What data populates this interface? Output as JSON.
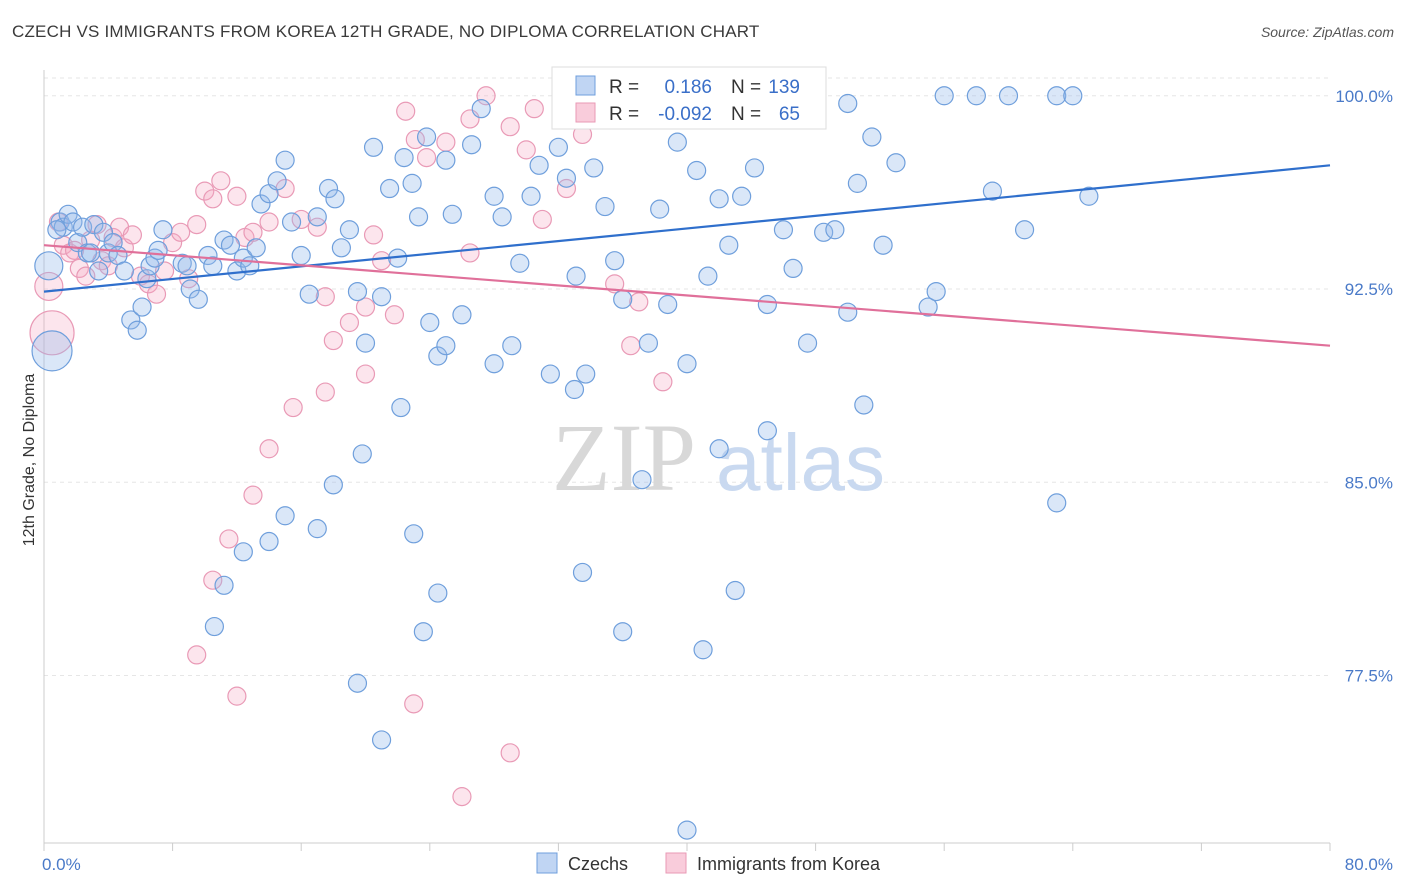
{
  "title": "CZECH VS IMMIGRANTS FROM KOREA 12TH GRADE, NO DIPLOMA CORRELATION CHART",
  "source": "Source: ZipAtlas.com",
  "watermark": {
    "zip": "ZIP",
    "atlas": "atlas"
  },
  "colors": {
    "czech_fill": "rgba(150,185,235,0.35)",
    "czech_stroke": "#6f9fdc",
    "czech_line": "#2f6fcc",
    "korea_fill": "rgba(245,170,195,0.30)",
    "korea_stroke": "#e99ab6",
    "korea_line": "#e0709a",
    "label_blue": "#4a7ac8"
  },
  "chart_data": {
    "type": "scatter",
    "title": "CZECH VS IMMIGRANTS FROM KOREA 12TH GRADE, NO DIPLOMA CORRELATION CHART",
    "xlabel": "",
    "ylabel": "12th Grade, No Diploma",
    "xlim": [
      0,
      80
    ],
    "ylim": [
      71.0,
      101.0
    ],
    "x_tick_labels": [
      "0.0%",
      "80.0%"
    ],
    "y_ticks": [
      77.5,
      85.0,
      92.5,
      100.0
    ],
    "y_tick_labels": [
      "77.5%",
      "85.0%",
      "92.5%",
      "100.0%"
    ],
    "grid": true,
    "legend_placement": "top-center",
    "stats": [
      {
        "r_label": "R =",
        "r": "0.186",
        "n_label": "N =",
        "n": "139"
      },
      {
        "r_label": "R =",
        "r": "-0.092",
        "n_label": "N =",
        "n": "65"
      }
    ],
    "series": [
      {
        "name": "Czechs",
        "trend": {
          "x": [
            0,
            80
          ],
          "y": [
            92.4,
            97.3
          ]
        },
        "points": [
          [
            0.3,
            93.4
          ],
          [
            0.5,
            90.1
          ],
          [
            1.0,
            95.1
          ],
          [
            1.2,
            94.9
          ],
          [
            1.5,
            95.4
          ],
          [
            1.8,
            95.1
          ],
          [
            2.1,
            94.3
          ],
          [
            2.4,
            94.9
          ],
          [
            2.7,
            93.9
          ],
          [
            3.1,
            95.0
          ],
          [
            3.4,
            93.2
          ],
          [
            3.7,
            94.7
          ],
          [
            4.0,
            93.9
          ],
          [
            4.3,
            94.3
          ],
          [
            0.8,
            94.8
          ],
          [
            2.9,
            93.9
          ],
          [
            4.6,
            93.8
          ],
          [
            5.0,
            93.2
          ],
          [
            5.4,
            91.3
          ],
          [
            5.8,
            90.9
          ],
          [
            6.1,
            91.8
          ],
          [
            6.4,
            92.9
          ],
          [
            6.6,
            93.4
          ],
          [
            6.9,
            93.7
          ],
          [
            7.1,
            94.0
          ],
          [
            7.4,
            94.8
          ],
          [
            8.6,
            93.5
          ],
          [
            8.9,
            93.4
          ],
          [
            9.1,
            92.5
          ],
          [
            9.6,
            92.1
          ],
          [
            10.2,
            93.8
          ],
          [
            10.5,
            93.4
          ],
          [
            11.2,
            94.4
          ],
          [
            11.6,
            94.2
          ],
          [
            12.0,
            93.2
          ],
          [
            12.4,
            93.7
          ],
          [
            12.8,
            93.4
          ],
          [
            13.2,
            94.1
          ],
          [
            13.5,
            95.8
          ],
          [
            14.0,
            96.2
          ],
          [
            14.5,
            96.7
          ],
          [
            15.0,
            97.5
          ],
          [
            15.4,
            95.1
          ],
          [
            16.0,
            93.8
          ],
          [
            16.5,
            92.3
          ],
          [
            17.0,
            95.3
          ],
          [
            17.7,
            96.4
          ],
          [
            18.1,
            96.0
          ],
          [
            18.5,
            94.1
          ],
          [
            19.0,
            94.8
          ],
          [
            19.5,
            92.4
          ],
          [
            20.0,
            90.4
          ],
          [
            20.5,
            98.0
          ],
          [
            21.0,
            92.2
          ],
          [
            21.5,
            96.4
          ],
          [
            22.0,
            93.7
          ],
          [
            22.4,
            97.6
          ],
          [
            22.9,
            96.6
          ],
          [
            23.3,
            95.3
          ],
          [
            23.8,
            98.4
          ],
          [
            24.5,
            89.9
          ],
          [
            25.0,
            97.5
          ],
          [
            25.4,
            95.4
          ],
          [
            26.0,
            91.5
          ],
          [
            26.6,
            98.1
          ],
          [
            27.2,
            99.5
          ],
          [
            28.0,
            96.1
          ],
          [
            28.5,
            95.3
          ],
          [
            29.1,
            90.3
          ],
          [
            29.6,
            93.5
          ],
          [
            30.3,
            96.1
          ],
          [
            30.8,
            97.3
          ],
          [
            31.5,
            89.2
          ],
          [
            32.0,
            98.0
          ],
          [
            32.5,
            96.8
          ],
          [
            33.1,
            93.0
          ],
          [
            33.7,
            89.2
          ],
          [
            34.2,
            97.2
          ],
          [
            34.9,
            95.7
          ],
          [
            35.5,
            93.6
          ],
          [
            36.0,
            92.1
          ],
          [
            36.9,
            99.1
          ],
          [
            37.6,
            90.4
          ],
          [
            38.3,
            95.6
          ],
          [
            38.8,
            91.9
          ],
          [
            39.4,
            98.2
          ],
          [
            40.0,
            89.6
          ],
          [
            40.6,
            97.1
          ],
          [
            41.3,
            93.0
          ],
          [
            42.0,
            96.0
          ],
          [
            42.6,
            94.2
          ],
          [
            43.4,
            96.1
          ],
          [
            44.2,
            97.2
          ],
          [
            45.0,
            91.9
          ],
          [
            46.0,
            94.8
          ],
          [
            46.6,
            93.3
          ],
          [
            48.0,
            99.1
          ],
          [
            48.5,
            94.7
          ],
          [
            49.2,
            94.8
          ],
          [
            50.0,
            99.7
          ],
          [
            50.6,
            96.6
          ],
          [
            51.5,
            98.4
          ],
          [
            52.2,
            94.2
          ],
          [
            53.0,
            97.4
          ],
          [
            55.0,
            91.8
          ],
          [
            56.0,
            100.0
          ],
          [
            58.0,
            100.0
          ],
          [
            60.0,
            100.0
          ],
          [
            63.0,
            100.0
          ],
          [
            64.0,
            100.0
          ],
          [
            65.0,
            96.1
          ],
          [
            59.0,
            96.3
          ],
          [
            61.0,
            94.8
          ],
          [
            55.5,
            92.4
          ],
          [
            50.0,
            91.6
          ],
          [
            47.5,
            90.4
          ],
          [
            51.0,
            88.0
          ],
          [
            42.0,
            86.3
          ],
          [
            37.2,
            85.1
          ],
          [
            45.0,
            87.0
          ],
          [
            43.0,
            80.8
          ],
          [
            41.0,
            78.5
          ],
          [
            36.0,
            79.2
          ],
          [
            33.5,
            81.5
          ],
          [
            33.0,
            88.6
          ],
          [
            28.0,
            89.6
          ],
          [
            25.0,
            90.3
          ],
          [
            24.0,
            91.2
          ],
          [
            22.2,
            87.9
          ],
          [
            19.8,
            86.1
          ],
          [
            18.0,
            84.9
          ],
          [
            17.0,
            83.2
          ],
          [
            15.0,
            83.7
          ],
          [
            14.0,
            82.7
          ],
          [
            12.4,
            82.3
          ],
          [
            11.2,
            81.0
          ],
          [
            10.6,
            79.4
          ],
          [
            19.5,
            77.2
          ],
          [
            23.0,
            83.0
          ],
          [
            24.5,
            80.7
          ],
          [
            23.6,
            79.2
          ],
          [
            21.0,
            75.0
          ],
          [
            40.0,
            71.5
          ],
          [
            63.0,
            84.2
          ]
        ]
      },
      {
        "name": "Immigrants from Korea",
        "trend": {
          "x": [
            0,
            80
          ],
          "y": [
            94.2,
            90.3
          ]
        },
        "points": [
          [
            0.3,
            92.6
          ],
          [
            0.5,
            90.8
          ],
          [
            0.9,
            95.1
          ],
          [
            1.2,
            94.2
          ],
          [
            1.6,
            93.9
          ],
          [
            1.9,
            94.0
          ],
          [
            2.2,
            93.3
          ],
          [
            2.6,
            93.0
          ],
          [
            2.9,
            94.4
          ],
          [
            3.3,
            95.0
          ],
          [
            3.6,
            93.6
          ],
          [
            4.0,
            93.4
          ],
          [
            4.3,
            94.5
          ],
          [
            4.7,
            94.9
          ],
          [
            5.0,
            94.1
          ],
          [
            5.5,
            94.6
          ],
          [
            6.0,
            93.0
          ],
          [
            6.5,
            92.7
          ],
          [
            7.0,
            92.3
          ],
          [
            7.5,
            93.2
          ],
          [
            8.0,
            94.3
          ],
          [
            8.5,
            94.7
          ],
          [
            9.0,
            92.9
          ],
          [
            9.5,
            95.0
          ],
          [
            10.0,
            96.3
          ],
          [
            10.5,
            96.0
          ],
          [
            11.0,
            96.7
          ],
          [
            12.0,
            96.1
          ],
          [
            12.5,
            94.5
          ],
          [
            13.0,
            94.7
          ],
          [
            14.0,
            95.1
          ],
          [
            15.0,
            96.4
          ],
          [
            16.0,
            95.2
          ],
          [
            17.0,
            94.9
          ],
          [
            17.5,
            92.2
          ],
          [
            18.0,
            90.5
          ],
          [
            19.0,
            91.2
          ],
          [
            20.0,
            91.8
          ],
          [
            20.5,
            94.6
          ],
          [
            21.0,
            93.6
          ],
          [
            21.8,
            91.5
          ],
          [
            22.5,
            99.4
          ],
          [
            23.1,
            98.3
          ],
          [
            23.8,
            97.6
          ],
          [
            25.0,
            98.2
          ],
          [
            26.5,
            99.1
          ],
          [
            27.5,
            100.0
          ],
          [
            29.0,
            98.8
          ],
          [
            30.0,
            97.9
          ],
          [
            31.0,
            95.2
          ],
          [
            32.5,
            96.4
          ],
          [
            34.0,
            99.4
          ],
          [
            35.5,
            92.7
          ],
          [
            36.5,
            90.3
          ],
          [
            37.0,
            92.0
          ],
          [
            38.5,
            88.9
          ],
          [
            20.0,
            89.2
          ],
          [
            17.5,
            88.5
          ],
          [
            15.5,
            87.9
          ],
          [
            14.0,
            86.3
          ],
          [
            13.0,
            84.5
          ],
          [
            11.5,
            82.8
          ],
          [
            10.5,
            81.2
          ],
          [
            9.5,
            78.3
          ],
          [
            12.0,
            76.7
          ],
          [
            23.0,
            76.4
          ],
          [
            26.0,
            72.8
          ],
          [
            29.0,
            74.5
          ],
          [
            26.5,
            93.9
          ],
          [
            30.5,
            99.5
          ],
          [
            33.5,
            98.5
          ]
        ]
      }
    ]
  },
  "legend": {
    "czechs": "Czechs",
    "korea": "Immigrants from Korea"
  }
}
